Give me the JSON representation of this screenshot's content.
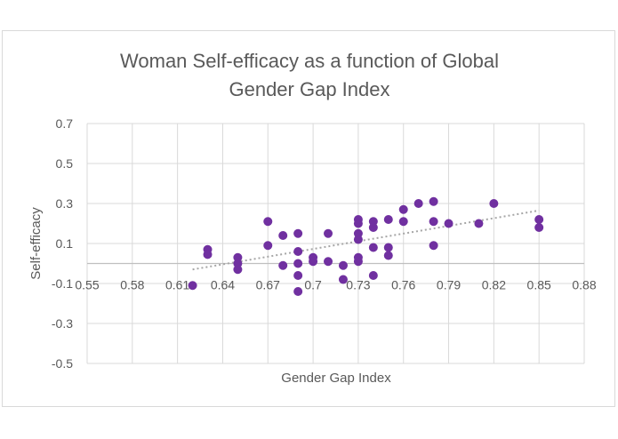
{
  "chart_data": {
    "type": "scatter",
    "title_lines": [
      "Woman Self-efficacy as a function of Global",
      "Gender Gap Index"
    ],
    "xlabel": "Gender Gap Index",
    "ylabel": "Self-efficacy",
    "xlim": [
      0.55,
      0.88
    ],
    "ylim": [
      -0.5,
      0.7
    ],
    "x_ticks": [
      "0.55",
      "0.58",
      "0.61",
      "0.64",
      "0.67",
      "0.7",
      "0.73",
      "0.76",
      "0.79",
      "0.82",
      "0.85",
      "0.88"
    ],
    "x_tick_values": [
      0.55,
      0.58,
      0.61,
      0.64,
      0.67,
      0.7,
      0.73,
      0.76,
      0.79,
      0.82,
      0.85,
      0.88
    ],
    "y_ticks": [
      "-0.5",
      "-0.3",
      "-0.1",
      "0.1",
      "0.3",
      "0.5",
      "0.7"
    ],
    "y_tick_values": [
      -0.5,
      -0.3,
      -0.1,
      0.1,
      0.3,
      0.5,
      0.7
    ],
    "grid": true,
    "marker_color": "#7030a0",
    "trendline_color": "#a6a6a6",
    "trendline": {
      "x": [
        0.62,
        0.85
      ],
      "y": [
        -0.03,
        0.265
      ]
    },
    "points": [
      {
        "x": 0.62,
        "y": -0.11
      },
      {
        "x": 0.63,
        "y": 0.07
      },
      {
        "x": 0.63,
        "y": 0.045
      },
      {
        "x": 0.65,
        "y": 0.03
      },
      {
        "x": 0.65,
        "y": 0.0
      },
      {
        "x": 0.65,
        "y": -0.03
      },
      {
        "x": 0.67,
        "y": 0.21
      },
      {
        "x": 0.67,
        "y": 0.09
      },
      {
        "x": 0.68,
        "y": 0.14
      },
      {
        "x": 0.68,
        "y": -0.01
      },
      {
        "x": 0.69,
        "y": 0.15
      },
      {
        "x": 0.69,
        "y": 0.06
      },
      {
        "x": 0.69,
        "y": 0.0
      },
      {
        "x": 0.69,
        "y": -0.06
      },
      {
        "x": 0.69,
        "y": -0.14
      },
      {
        "x": 0.7,
        "y": 0.03
      },
      {
        "x": 0.7,
        "y": 0.01
      },
      {
        "x": 0.71,
        "y": 0.15
      },
      {
        "x": 0.71,
        "y": 0.01
      },
      {
        "x": 0.72,
        "y": -0.01
      },
      {
        "x": 0.72,
        "y": -0.08
      },
      {
        "x": 0.73,
        "y": 0.22
      },
      {
        "x": 0.73,
        "y": 0.2
      },
      {
        "x": 0.73,
        "y": 0.15
      },
      {
        "x": 0.73,
        "y": 0.12
      },
      {
        "x": 0.73,
        "y": 0.03
      },
      {
        "x": 0.73,
        "y": 0.01
      },
      {
        "x": 0.74,
        "y": 0.21
      },
      {
        "x": 0.74,
        "y": 0.18
      },
      {
        "x": 0.74,
        "y": 0.08
      },
      {
        "x": 0.74,
        "y": -0.06
      },
      {
        "x": 0.75,
        "y": 0.22
      },
      {
        "x": 0.75,
        "y": 0.08
      },
      {
        "x": 0.75,
        "y": 0.04
      },
      {
        "x": 0.76,
        "y": 0.27
      },
      {
        "x": 0.76,
        "y": 0.21
      },
      {
        "x": 0.77,
        "y": 0.3
      },
      {
        "x": 0.78,
        "y": 0.31
      },
      {
        "x": 0.78,
        "y": 0.21
      },
      {
        "x": 0.78,
        "y": 0.09
      },
      {
        "x": 0.79,
        "y": 0.2
      },
      {
        "x": 0.81,
        "y": 0.2
      },
      {
        "x": 0.82,
        "y": 0.3
      },
      {
        "x": 0.85,
        "y": 0.22
      },
      {
        "x": 0.85,
        "y": 0.18
      }
    ]
  }
}
